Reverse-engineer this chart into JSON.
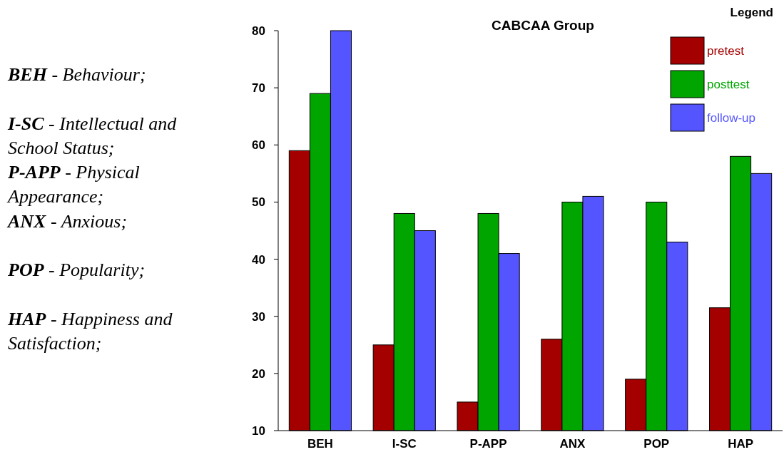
{
  "chart_data": {
    "type": "bar",
    "title": "CABCAA  Group",
    "legend_title": "Legend",
    "legend": "top right",
    "categories": [
      "BEH",
      "I-SC",
      "P-APP",
      "ANX",
      "POP",
      "HAP"
    ],
    "series": [
      {
        "name": "pretest",
        "color": "#a50000",
        "values": [
          59,
          25,
          15,
          26,
          19,
          31.5
        ]
      },
      {
        "name": "posttest",
        "color": "#00a500",
        "values": [
          69,
          48,
          48,
          50,
          50,
          58
        ]
      },
      {
        "name": "follow-up",
        "color": "#5555ff",
        "values": [
          80,
          45,
          41,
          51,
          43,
          55
        ]
      }
    ],
    "ylim": [
      10,
      80
    ],
    "yticks": [
      10,
      20,
      30,
      40,
      50,
      60,
      70,
      80
    ],
    "annotations": [
      "BEH - Behaviour;",
      "I-SC - Intellectual and School Status;",
      "P-APP - Physical Appearance;",
      "ANX - Anxious;",
      "POP - Popularity;",
      "HAP - Happiness and Satisfaction;"
    ]
  }
}
